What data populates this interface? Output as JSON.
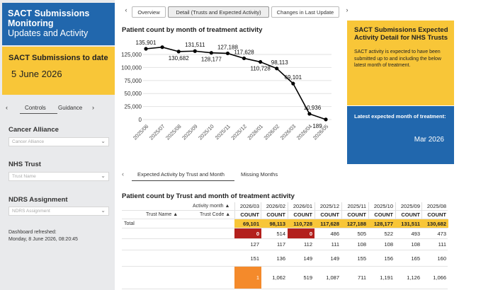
{
  "sidebar": {
    "title_line1": "SACT Submissions",
    "title_line2": "Monitoring",
    "title_line3": "Updates and Activity",
    "date_label": "SACT Submissions to date",
    "date_value": "5 June 2026",
    "tabs": [
      "Controls",
      "Guidance"
    ],
    "filters": [
      {
        "label": "Cancer Alliance",
        "placeholder": "Cancer Alliance"
      },
      {
        "label": "NHS Trust",
        "placeholder": "Trust Name"
      },
      {
        "label": "NDRS Assignment",
        "placeholder": "NDRS Assignment"
      }
    ],
    "refresh_line1": "Dashboard refreshed:",
    "refresh_line2": "Monday, 8 June 2026, 08:20:45"
  },
  "page_tabs": [
    "Overview",
    "Detail (Trusts and Expected Activity)",
    "Changes in Last Update"
  ],
  "chart_data": {
    "type": "line",
    "title": "Patient count by month of treatment activity",
    "x": [
      "2025/06",
      "2025/07",
      "2025/08",
      "2025/09",
      "2025/10",
      "2025/11",
      "2025/12",
      "2026/01",
      "2026/02",
      "2026/03",
      "2026/04",
      "2026/05"
    ],
    "values": [
      135901,
      139050,
      130682,
      131511,
      128177,
      127188,
      117628,
      110728,
      98113,
      69101,
      10936,
      189
    ],
    "data_labels": [
      "135,901",
      "",
      "130,682",
      "131,511",
      "128,177",
      "127,188",
      "117,628",
      "110,728",
      "98,113",
      "69,101",
      "10,936",
      "189"
    ],
    "yticks": [
      "0",
      "25,000",
      "50,000",
      "75,000",
      "100,000",
      "125,000"
    ],
    "ylim": [
      0,
      140000
    ],
    "grid": "horizontal",
    "color": "#000000"
  },
  "info": {
    "heading": "SACT Submissions Expected Activity Detail for NHS Trusts",
    "body": "SACT activity is expected to have been submitted up to and including the below latest month of treatment.",
    "latest_label": "Latest expected month of treatment:",
    "latest_value": "Mar 2026"
  },
  "lower_tabs": [
    "Expected Activity by Trust and Month",
    "Missing Months"
  ],
  "table": {
    "title": "Patient count by Trust and month of treatment activity",
    "activity_month_label": "Activity month",
    "trust_name_label": "Trust Name",
    "trust_code_label": "Trust Code",
    "months": [
      "2026/03",
      "2026/02",
      "2026/01",
      "2025/12",
      "2025/11",
      "2025/10",
      "2025/09",
      "2025/08"
    ],
    "measure": "COUNT",
    "total_label": "Total",
    "total": [
      "69,101",
      "98,113",
      "110,728",
      "117,628",
      "127,188",
      "128,177",
      "131,511",
      "130,682"
    ],
    "rows": [
      [
        "0",
        "514",
        "0",
        "486",
        "505",
        "522",
        "493",
        "473"
      ],
      [
        "127",
        "117",
        "112",
        "111",
        "108",
        "108",
        "108",
        "111"
      ],
      [
        "151",
        "136",
        "149",
        "149",
        "155",
        "156",
        "165",
        "160"
      ],
      [
        "1",
        "1,062",
        "519",
        "1,087",
        "711",
        "1,191",
        "1,126",
        "1,066"
      ]
    ],
    "highlight_colors": {
      "red": "#b3201d",
      "orange": "#f48a2b",
      "yellow": "#f8c638"
    }
  },
  "colors": {
    "brand_blue": "#2167ad",
    "brand_yellow": "#f8c638",
    "sidebar_bg": "#e9eaec"
  }
}
